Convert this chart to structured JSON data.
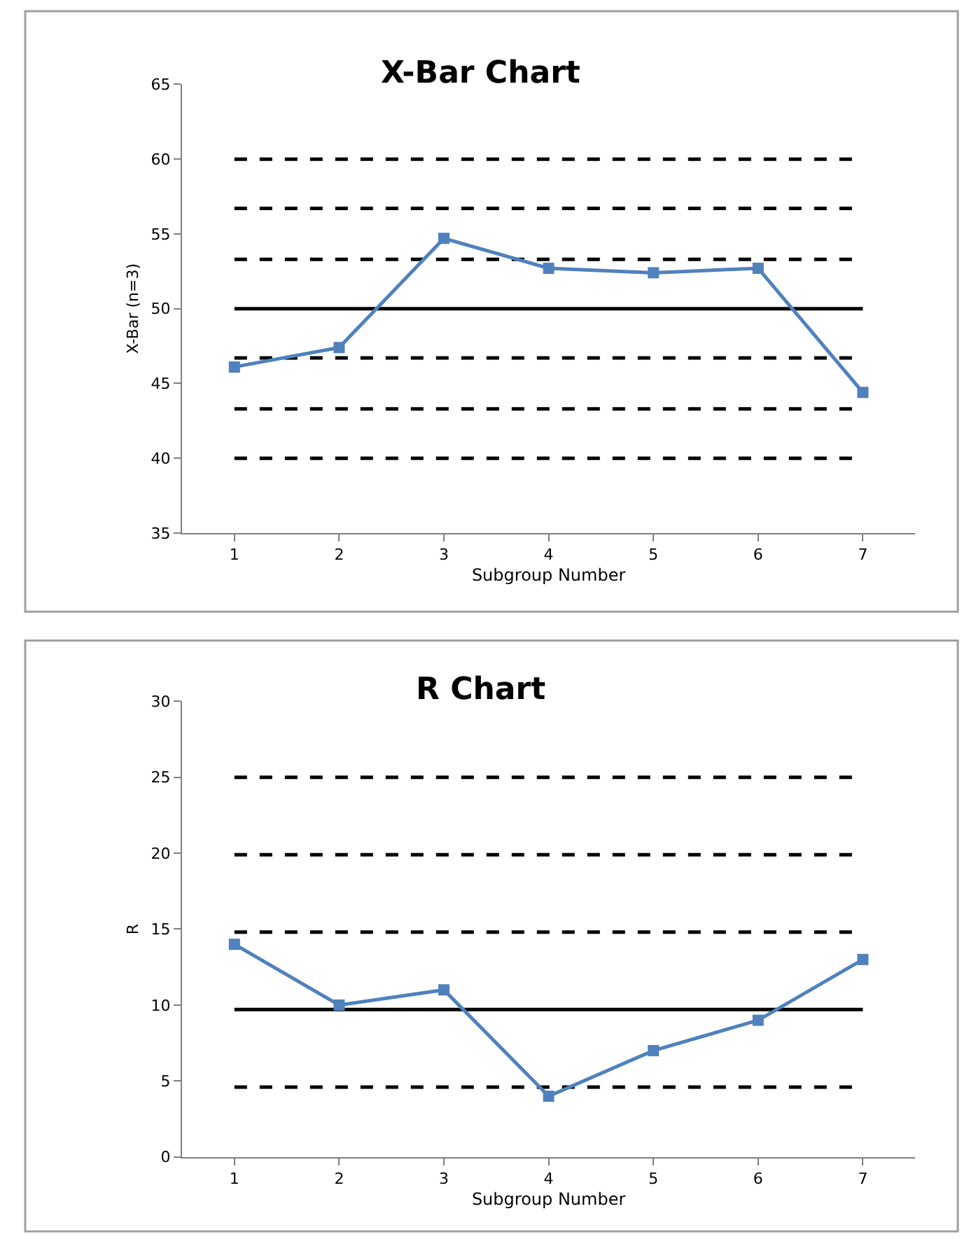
{
  "chart_data": [
    {
      "type": "line",
      "title": "X-Bar Chart",
      "xlabel": "Subgroup Number",
      "ylabel": "X-Bar (n=3)",
      "categories": [
        "1",
        "2",
        "3",
        "4",
        "5",
        "6",
        "7"
      ],
      "series": [
        {
          "color": "#4f81bd",
          "values": [
            46.1,
            47.4,
            54.7,
            52.7,
            52.4,
            52.7,
            44.4
          ]
        }
      ],
      "ylim": [
        35,
        65
      ],
      "yticks": [
        35,
        40,
        45,
        50,
        55,
        60,
        65
      ],
      "grid": false,
      "marker": "square",
      "line_style": "solid",
      "ref_lines": [
        {
          "axis": "y",
          "value": 60,
          "color": "#000000",
          "line_style": "dashed"
        },
        {
          "axis": "y",
          "value": 56.7,
          "color": "#000000",
          "line_style": "dashed"
        },
        {
          "axis": "y",
          "value": 53.3,
          "color": "#000000",
          "line_style": "dashed"
        },
        {
          "axis": "y",
          "value": 50,
          "color": "#000000",
          "line_style": "solid"
        },
        {
          "axis": "y",
          "value": 46.7,
          "color": "#000000",
          "line_style": "dashed"
        },
        {
          "axis": "y",
          "value": 43.3,
          "color": "#000000",
          "line_style": "dashed"
        },
        {
          "axis": "y",
          "value": 40,
          "color": "#000000",
          "line_style": "dashed"
        }
      ]
    },
    {
      "type": "line",
      "title": "R Chart",
      "xlabel": "Subgroup Number",
      "ylabel": "R",
      "categories": [
        "1",
        "2",
        "3",
        "4",
        "5",
        "6",
        "7"
      ],
      "series": [
        {
          "color": "#4f81bd",
          "values": [
            14,
            10,
            11,
            4,
            7,
            9,
            13
          ]
        }
      ],
      "ylim": [
        0,
        30
      ],
      "yticks": [
        0,
        5,
        10,
        15,
        20,
        25,
        30
      ],
      "grid": false,
      "marker": "square",
      "line_style": "solid",
      "ref_lines": [
        {
          "axis": "y",
          "value": 25,
          "color": "#000000",
          "line_style": "dashed"
        },
        {
          "axis": "y",
          "value": 19.9,
          "color": "#000000",
          "line_style": "dashed"
        },
        {
          "axis": "y",
          "value": 14.8,
          "color": "#000000",
          "line_style": "dashed"
        },
        {
          "axis": "y",
          "value": 9.7,
          "color": "#000000",
          "line_style": "solid"
        },
        {
          "axis": "y",
          "value": 4.6,
          "color": "#000000",
          "line_style": "dashed"
        }
      ]
    }
  ]
}
